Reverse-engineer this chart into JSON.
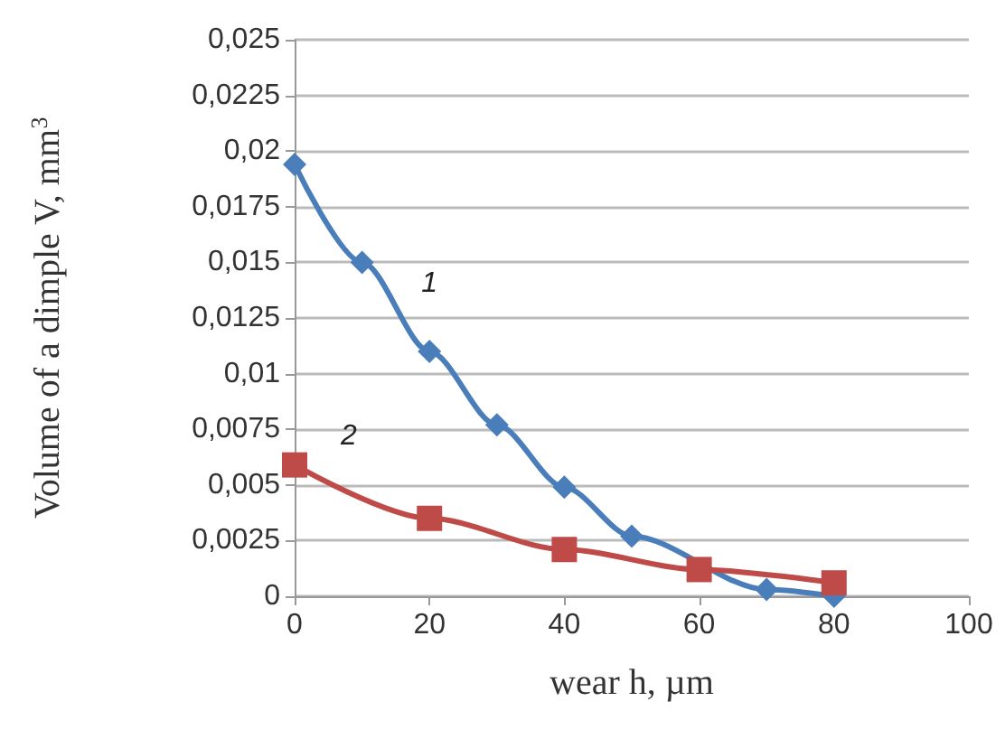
{
  "chart_data": {
    "type": "line",
    "xlabel": "wear h, µm",
    "ylabel": "Volume of a dimple V, mm$^{3}$",
    "series": [
      {
        "name": "1",
        "color": "#4a7ebb",
        "marker": "diamond",
        "x": [
          0,
          10,
          20,
          30,
          40,
          50,
          60,
          70,
          80
        ],
        "values": [
          0.0194,
          0.015,
          0.011,
          0.0077,
          0.0049,
          0.0027,
          null,
          0.0003,
          0.0
        ]
      },
      {
        "name": "2",
        "color": "#be4b48",
        "marker": "square",
        "x": [
          0,
          20,
          40,
          60,
          80
        ],
        "values": [
          0.0059,
          0.0035,
          0.0021,
          0.0012,
          0.0006
        ]
      }
    ],
    "xlim": [
      0,
      100
    ],
    "xticks": [
      0,
      20,
      40,
      60,
      80,
      100
    ],
    "ylim": [
      0,
      0.025
    ],
    "yticks": [
      {
        "value": 0,
        "label": "0"
      },
      {
        "value": 0.0025,
        "label": "0,0025"
      },
      {
        "value": 0.005,
        "label": "0,005"
      },
      {
        "value": 0.0075,
        "label": "0,0075"
      },
      {
        "value": 0.01,
        "label": "0,01"
      },
      {
        "value": 0.0125,
        "label": "0,0125"
      },
      {
        "value": 0.015,
        "label": "0,015"
      },
      {
        "value": 0.0175,
        "label": "0,0175"
      },
      {
        "value": 0.02,
        "label": "0,02"
      },
      {
        "value": 0.0225,
        "label": "0,0225"
      },
      {
        "value": 0.025,
        "label": "0,025"
      }
    ],
    "grid": "y",
    "legend": false,
    "line_style": "solid"
  }
}
